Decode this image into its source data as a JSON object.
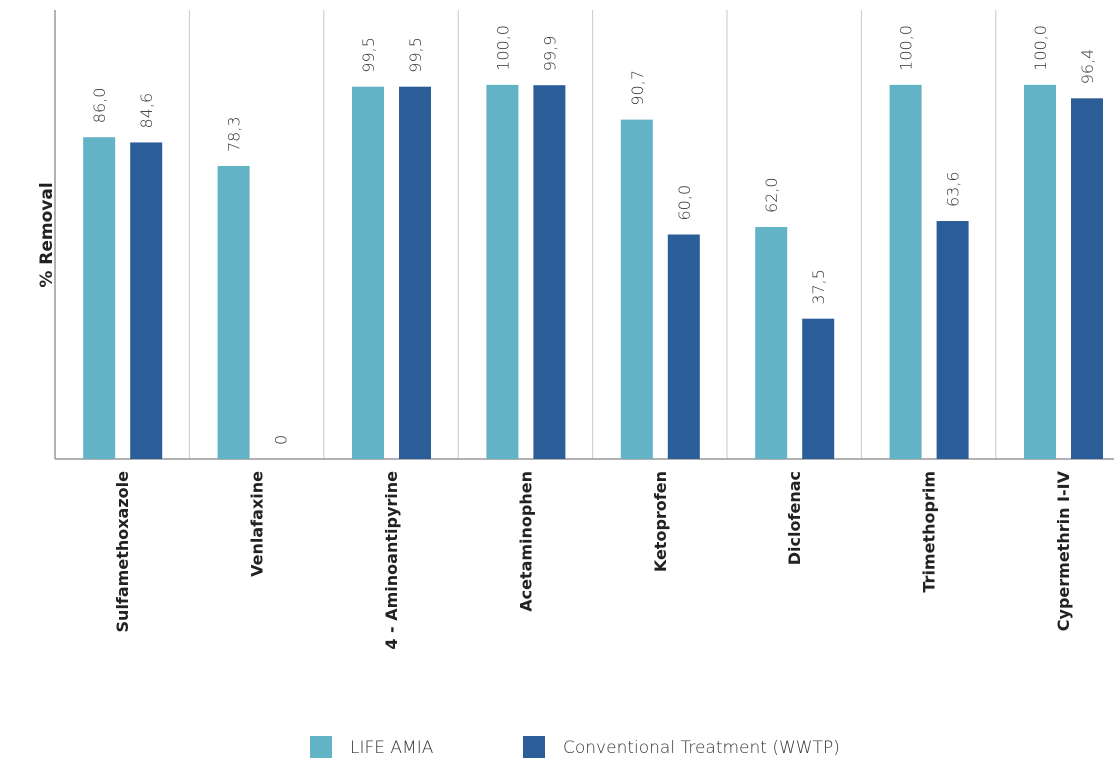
{
  "chart_data": {
    "type": "bar",
    "y_label": "% Removal",
    "categories": [
      "Sulfamethoxazole",
      "Venlafaxine",
      "4 - Aminoantipyrine",
      "Acetaminophen",
      "Ketoprofen",
      "Diclofenac",
      "Trimethoprim",
      "Cypermethrin I-IV"
    ],
    "series": [
      {
        "name": "LIFE AMIA",
        "color": "#62b3c5",
        "values": [
          86.0,
          78.3,
          99.5,
          100.0,
          90.7,
          62.0,
          100.0,
          100.0
        ],
        "value_labels": [
          "86,0",
          "78,3",
          "99,5",
          "100,0",
          "90,7",
          "62,0",
          "100,0",
          "100,0"
        ]
      },
      {
        "name": "Conventional Treatment (WWTP)",
        "color": "#2b5d98",
        "values": [
          84.6,
          0,
          99.5,
          99.9,
          60.0,
          37.5,
          63.6,
          96.4
        ],
        "value_labels": [
          "84,6",
          "0",
          "99,5",
          "99,9",
          "60,0",
          "37,5",
          "63,6",
          "96,4"
        ]
      }
    ],
    "ylim": [
      0,
      120
    ]
  }
}
